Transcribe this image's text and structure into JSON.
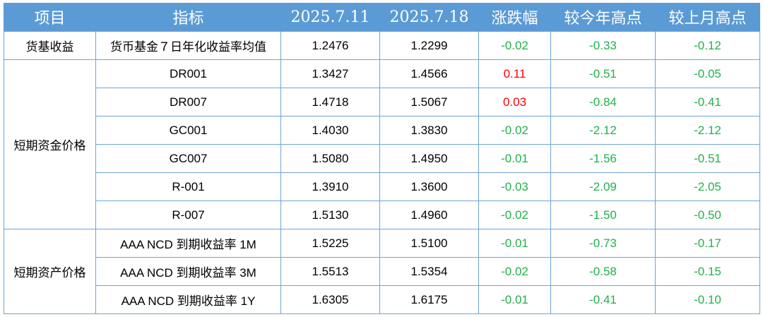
{
  "headers": [
    "项目",
    "指标",
    "2025.7.11",
    "2025.7.18",
    "涨跌幅",
    "较今年高点",
    "较上月高点"
  ],
  "colors": {
    "header_bg": "#5b9bd5",
    "up": "#ff0000",
    "down": "#22b14c",
    "border": "#6fa3d8"
  },
  "groups": [
    {
      "name": "货基收益",
      "rows": [
        {
          "indicator": "货币基金７日年化收益率均值",
          "v1": "1.2476",
          "v2": "1.2299",
          "chg": "-0.02",
          "vs_year": "-0.33",
          "vs_month": "-0.12"
        }
      ]
    },
    {
      "name": "短期资金价格",
      "rows": [
        {
          "indicator": "DR001",
          "v1": "1.3427",
          "v2": "1.4566",
          "chg": "0.11",
          "vs_year": "-0.51",
          "vs_month": "-0.05"
        },
        {
          "indicator": "DR007",
          "v1": "1.4718",
          "v2": "1.5067",
          "chg": "0.03",
          "vs_year": "-0.84",
          "vs_month": "-0.41"
        },
        {
          "indicator": "GC001",
          "v1": "1.4030",
          "v2": "1.3830",
          "chg": "-0.02",
          "vs_year": "-2.12",
          "vs_month": "-2.12"
        },
        {
          "indicator": "GC007",
          "v1": "1.5080",
          "v2": "1.4950",
          "chg": "-0.01",
          "vs_year": "-1.56",
          "vs_month": "-0.51"
        },
        {
          "indicator": "R-001",
          "v1": "1.3910",
          "v2": "1.3600",
          "chg": "-0.03",
          "vs_year": "-2.09",
          "vs_month": "-2.05"
        },
        {
          "indicator": "R-007",
          "v1": "1.5130",
          "v2": "1.4960",
          "chg": "-0.02",
          "vs_year": "-1.50",
          "vs_month": "-0.50"
        }
      ]
    },
    {
      "name": "短期资产价格",
      "rows": [
        {
          "indicator": "AAA NCD 到期收益率 1M",
          "v1": "1.5225",
          "v2": "1.5100",
          "chg": "-0.01",
          "vs_year": "-0.73",
          "vs_month": "-0.17"
        },
        {
          "indicator": "AAA NCD 到期收益率 3M",
          "v1": "1.5513",
          "v2": "1.5354",
          "chg": "-0.02",
          "vs_year": "-0.58",
          "vs_month": "-0.15"
        },
        {
          "indicator": "AAA NCD 到期收益率 1Y",
          "v1": "1.6305",
          "v2": "1.6175",
          "chg": "-0.01",
          "vs_year": "-0.41",
          "vs_month": "-0.10"
        }
      ]
    }
  ]
}
